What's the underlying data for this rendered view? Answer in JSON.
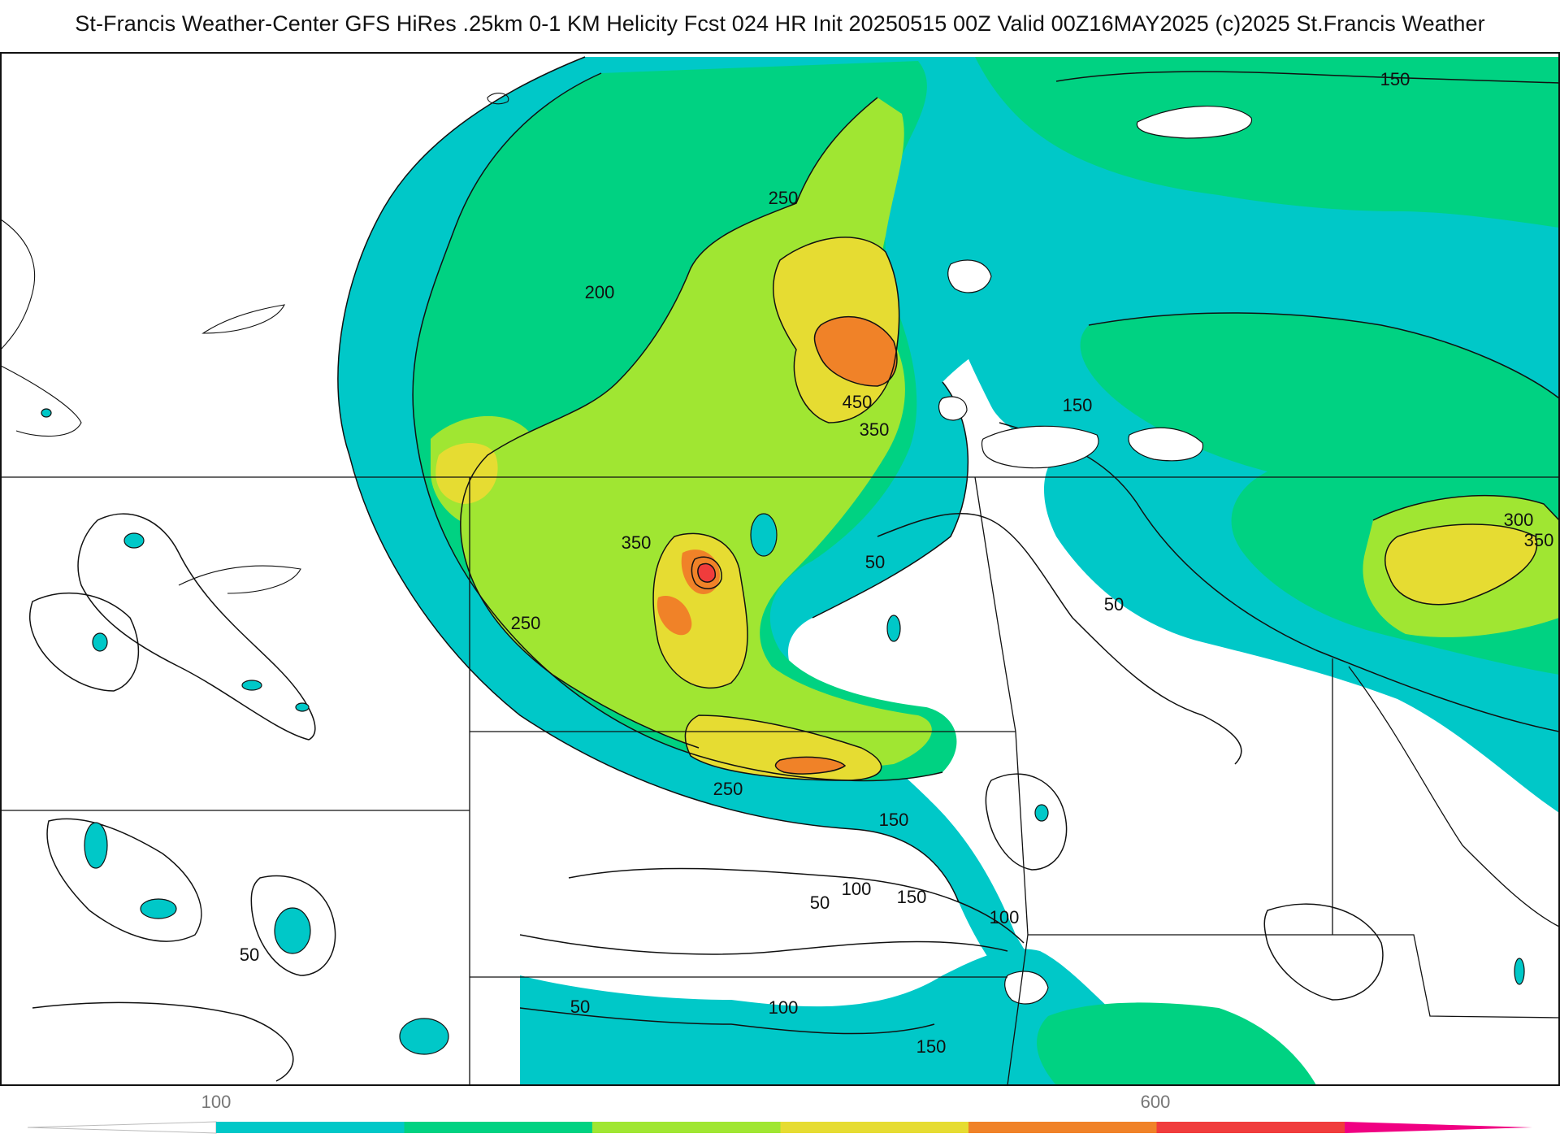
{
  "title": "St-Francis Weather-Center GFS HiRes .25km 0-1 KM Helicity Fcst 024 HR Init 20250515 00Z  Valid 00Z16MAY2025    (c)2025 St.Francis Weather",
  "contour_labels": [
    "150",
    "200",
    "250",
    "450",
    "350",
    "150",
    "350",
    "250",
    "50",
    "50",
    "300",
    "350",
    "250",
    "150",
    "100",
    "150",
    "50",
    "100",
    "50",
    "50",
    "100",
    "150"
  ],
  "colorbar": {
    "tick_labels": [
      "100",
      "600"
    ],
    "colors": [
      "#00c8c8",
      "#00d282",
      "#a0e632",
      "#e6dc32",
      "#f08228",
      "#f03c3c",
      "#f00082"
    ]
  },
  "fill_colors": {
    "cyan": "#00c8c8",
    "green": "#00d282",
    "lime": "#a0e632",
    "yellow": "#e6dc32",
    "orange": "#f08228",
    "red": "#f03c3c"
  }
}
